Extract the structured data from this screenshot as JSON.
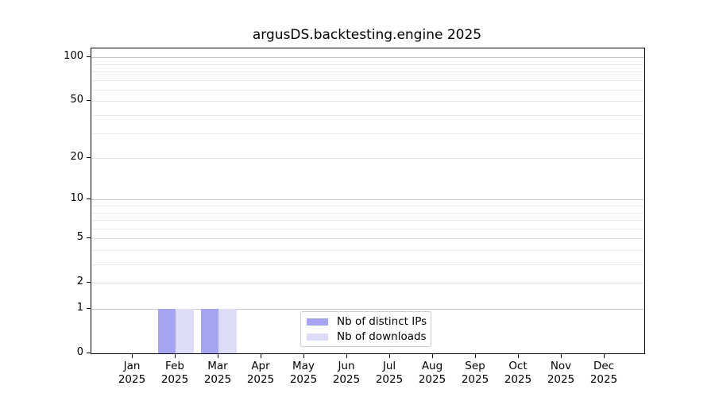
{
  "figure": {
    "background": "#ffffff",
    "text_color": "#000000"
  },
  "chart_data": {
    "type": "bar",
    "title": "argusDS.backtesting.engine 2025",
    "categories": [
      "Jan 2025",
      "Feb 2025",
      "Mar 2025",
      "Apr 2025",
      "May 2025",
      "Jun 2025",
      "Jul 2025",
      "Aug 2025",
      "Sep 2025",
      "Oct 2025",
      "Nov 2025",
      "Dec 2025"
    ],
    "series": [
      {
        "name": "Nb of distinct IPs",
        "color": "#a5a5f2",
        "values": [
          0,
          1,
          1,
          0,
          0,
          0,
          0,
          0,
          0,
          0,
          0,
          0
        ]
      },
      {
        "name": "Nb of downloads",
        "color": "#dcdcf7",
        "values": [
          0,
          1,
          1,
          0,
          0,
          0,
          0,
          0,
          0,
          0,
          0,
          0
        ]
      }
    ],
    "xlabel": "",
    "ylabel": "",
    "yscale": "log1p",
    "ylim": [
      0,
      115
    ],
    "y_major_ticks": [
      0,
      1,
      2,
      5,
      10,
      20,
      50,
      100
    ],
    "y_minor_gridlines": [
      3,
      4,
      6,
      7,
      8,
      9,
      30,
      40,
      60,
      70,
      80,
      90
    ],
    "grid": "horizontal",
    "legend_position": "lower center",
    "grid_colors": {
      "power_of_ten": "#c6c6c6",
      "major": "#e2e2e2",
      "minor": "#ececec"
    }
  }
}
